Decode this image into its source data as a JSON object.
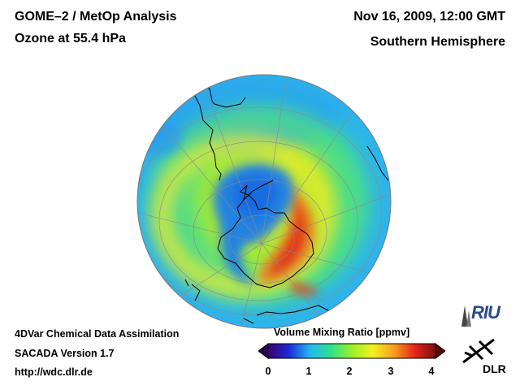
{
  "header": {
    "title": "GOME–2 / MetOp Analysis",
    "subtitle": "Ozone at 55.4 hPa",
    "date": "Nov 16, 2009, 12:00 GMT",
    "hemisphere": "Southern Hemisphere"
  },
  "footer": {
    "line1": "4DVar Chemical Data Assimilation",
    "line2": "SACADA Version 1.7",
    "line3": "http://wdc.dlr.de"
  },
  "colorbar": {
    "title": "Volume Mixing Ratio [ppmv]",
    "ticks": [
      "0",
      "1",
      "2",
      "3",
      "4"
    ],
    "range": [
      0,
      4
    ],
    "colors": [
      "#3a006a",
      "#1a2bd9",
      "#23b8f0",
      "#2ee08a",
      "#9af02a",
      "#f4f020",
      "#f5a020",
      "#e82418",
      "#7a1010"
    ]
  },
  "map": {
    "projection": "orthographic",
    "center": "South Pole",
    "variable": "ozone"
  },
  "logos": {
    "riu": "RIU",
    "dlr": "DLR"
  }
}
